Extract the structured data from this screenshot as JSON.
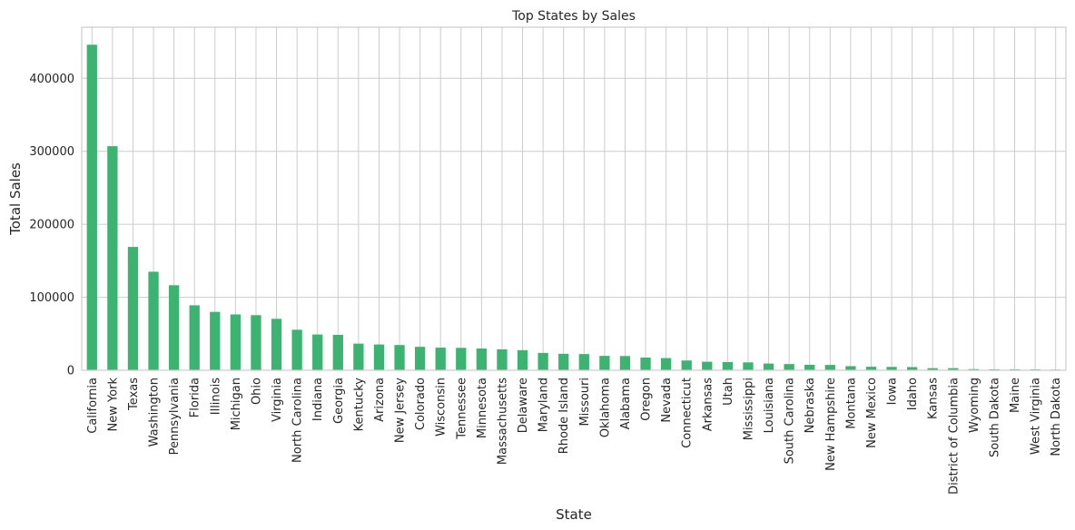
{
  "chart_data": {
    "type": "bar",
    "title": "Top States by Sales",
    "xlabel": "State",
    "ylabel": "Total Sales",
    "ylim": [
      0,
      470000
    ],
    "yticks": [
      0,
      100000,
      200000,
      300000,
      400000
    ],
    "ytick_labels": [
      "0",
      "100000",
      "200000",
      "300000",
      "400000"
    ],
    "bar_color": "#3cb371",
    "grid": true,
    "categories": [
      "California",
      "New York",
      "Texas",
      "Washington",
      "Pennsylvania",
      "Florida",
      "Illinois",
      "Michigan",
      "Ohio",
      "Virginia",
      "North Carolina",
      "Indiana",
      "Georgia",
      "Kentucky",
      "Arizona",
      "New Jersey",
      "Colorado",
      "Wisconsin",
      "Tennessee",
      "Minnesota",
      "Massachusetts",
      "Delaware",
      "Maryland",
      "Rhode Island",
      "Missouri",
      "Oklahoma",
      "Alabama",
      "Oregon",
      "Nevada",
      "Connecticut",
      "Arkansas",
      "Utah",
      "Mississippi",
      "Louisiana",
      "South Carolina",
      "Nebraska",
      "New Hampshire",
      "Montana",
      "New Mexico",
      "Iowa",
      "Idaho",
      "Kansas",
      "District of Columbia",
      "Wyoming",
      "South Dakota",
      "Maine",
      "West Virginia",
      "North Dakota"
    ],
    "values": [
      446000,
      307000,
      169000,
      135000,
      116500,
      89000,
      80000,
      76500,
      75500,
      70500,
      55500,
      49000,
      48500,
      36500,
      35300,
      34600,
      32100,
      31000,
      30700,
      29800,
      28600,
      27500,
      23800,
      22600,
      22200,
      19700,
      19500,
      17400,
      16700,
      13400,
      11700,
      11200,
      10800,
      9200,
      8500,
      7500,
      7300,
      5600,
      4800,
      4600,
      4400,
      2900,
      2900,
      1600,
      1300,
      1300,
      1200,
      900
    ]
  }
}
